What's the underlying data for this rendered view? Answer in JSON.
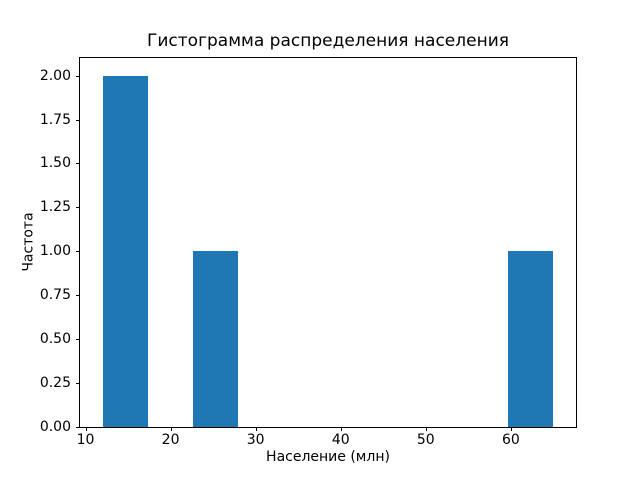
{
  "chart_data": {
    "type": "bar",
    "subtype": "histogram",
    "title": "Гистограмма распределения населения",
    "xlabel": "Население (млн)",
    "ylabel": "Частота",
    "bar_color": "#1f77b4",
    "axis_color": "#000000",
    "background_color": "#ffffff",
    "grid": false,
    "legend": null,
    "xlim": [
      9.35,
      67.65
    ],
    "ylim": [
      0,
      2.1
    ],
    "x_ticks": [
      {
        "value": 10,
        "label": "10"
      },
      {
        "value": 20,
        "label": "20"
      },
      {
        "value": 30,
        "label": "30"
      },
      {
        "value": 40,
        "label": "40"
      },
      {
        "value": 50,
        "label": "50"
      },
      {
        "value": 60,
        "label": "60"
      }
    ],
    "y_ticks": [
      {
        "value": 0.0,
        "label": "0.00"
      },
      {
        "value": 0.25,
        "label": "0.25"
      },
      {
        "value": 0.5,
        "label": "0.50"
      },
      {
        "value": 0.75,
        "label": "0.75"
      },
      {
        "value": 1.0,
        "label": "1.00"
      },
      {
        "value": 1.25,
        "label": "1.25"
      },
      {
        "value": 1.5,
        "label": "1.50"
      },
      {
        "value": 1.75,
        "label": "1.75"
      },
      {
        "value": 2.0,
        "label": "2.00"
      }
    ],
    "bars": [
      {
        "x0": 12.0,
        "x1": 17.3,
        "height": 2
      },
      {
        "x0": 22.6,
        "x1": 27.9,
        "height": 1
      },
      {
        "x0": 59.7,
        "x1": 65.0,
        "height": 1
      }
    ]
  }
}
